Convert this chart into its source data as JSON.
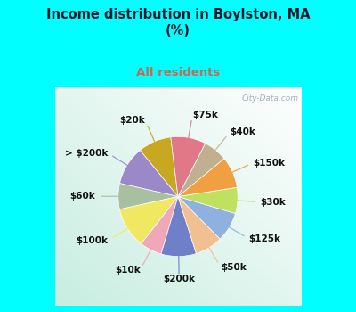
{
  "title": "Income distribution in Boylston, MA\n(%)",
  "subtitle": "All residents",
  "title_color": "#1a1a2e",
  "subtitle_color": "#cc6655",
  "bg_color_cyan": "#00ffff",
  "watermark": "City-Data.com",
  "labels": [
    "$20k",
    "> $200k",
    "$60k",
    "$100k",
    "$10k",
    "$200k",
    "$50k",
    "$125k",
    "$30k",
    "$150k",
    "$40k",
    "$75k"
  ],
  "values": [
    9.0,
    10.5,
    7.0,
    11.0,
    6.0,
    9.5,
    7.5,
    8.0,
    7.0,
    8.5,
    6.5,
    9.5
  ],
  "colors": [
    "#c8a820",
    "#9b88c8",
    "#a8c0a0",
    "#f0e860",
    "#f0a8b8",
    "#7080c8",
    "#f0c090",
    "#90b0e0",
    "#c0e060",
    "#f0a040",
    "#c0b090",
    "#e07888"
  ],
  "label_fontsize": 7.5,
  "label_color": "#111111",
  "startangle": 97
}
